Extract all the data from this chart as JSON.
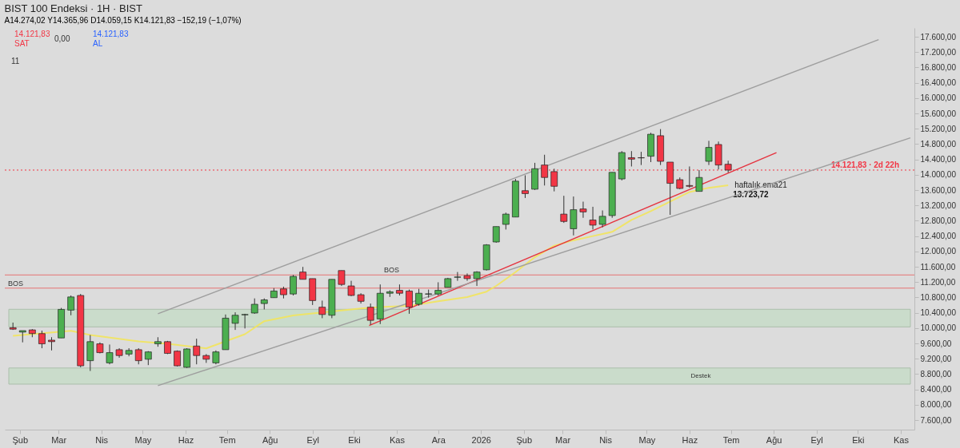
{
  "chart_data": {
    "type": "candlestick",
    "title": "BIST 100 Endeksi · 1H · BIST",
    "subtitle": "A14.274,02 Y14.365,96 D14.059,15 K14.121,83 −152,19 (−1,07%)",
    "x": [
      "2025-01-27",
      "2025-02-03",
      "2025-02-10",
      "2025-02-17",
      "2025-02-24",
      "2025-03-03",
      "2025-03-10",
      "2025-03-17",
      "2025-03-24",
      "2025-03-31",
      "2025-04-07",
      "2025-04-14",
      "2025-04-21",
      "2025-04-28",
      "2025-05-05",
      "2025-05-12",
      "2025-05-19",
      "2025-05-26",
      "2025-06-02",
      "2025-06-09",
      "2025-06-16",
      "2025-06-23",
      "2025-06-30",
      "2025-07-07",
      "2025-07-14",
      "2025-07-21",
      "2025-07-28",
      "2025-08-04",
      "2025-08-11",
      "2025-08-18",
      "2025-08-25",
      "2025-09-01",
      "2025-09-08",
      "2025-09-15",
      "2025-09-22",
      "2025-09-29",
      "2025-10-06",
      "2025-10-13",
      "2025-10-20",
      "2025-10-27",
      "2025-11-03",
      "2025-11-10",
      "2025-11-17",
      "2025-11-24",
      "2025-12-01",
      "2025-12-08",
      "2025-12-15",
      "2025-12-22",
      "2025-12-29",
      "2026-01-05",
      "2026-01-12",
      "2026-01-19",
      "2026-01-26",
      "2026-02-02",
      "2026-02-09",
      "2026-02-16",
      "2026-02-23",
      "2026-03-02",
      "2026-03-09",
      "2026-03-16",
      "2026-03-23",
      "2026-03-30",
      "2026-04-06",
      "2026-04-13",
      "2026-04-20",
      "2026-04-27",
      "2026-05-04",
      "2026-05-11",
      "2026-05-18",
      "2026-05-25",
      "2026-06-01",
      "2026-06-08",
      "2026-06-15",
      "2026-06-22",
      "2026-06-29"
    ],
    "ohlc": [
      [
        10009,
        10143,
        9952,
        9971
      ],
      [
        9895,
        9933,
        9627,
        9933
      ],
      [
        9952,
        9971,
        9761,
        9856
      ],
      [
        9856,
        9933,
        9474,
        9589
      ],
      [
        9684,
        9761,
        9417,
        9646
      ],
      [
        9742,
        10526,
        9742,
        10487
      ],
      [
        10468,
        10851,
        10334,
        10812
      ],
      [
        10851,
        10889,
        8977,
        9015
      ],
      [
        9149,
        9818,
        8881,
        9646
      ],
      [
        9589,
        9627,
        9340,
        9359
      ],
      [
        9092,
        9570,
        9054,
        9359
      ],
      [
        9436,
        9474,
        9226,
        9283
      ],
      [
        9321,
        9474,
        9264,
        9417
      ],
      [
        9436,
        9474,
        9054,
        9149
      ],
      [
        9187,
        9398,
        9034,
        9378
      ],
      [
        9589,
        9761,
        9513,
        9646
      ],
      [
        9646,
        9665,
        9321,
        9340
      ],
      [
        9398,
        9417,
        8996,
        9015
      ],
      [
        8977,
        9474,
        8958,
        9455
      ],
      [
        9531,
        9723,
        9054,
        9283
      ],
      [
        9283,
        9321,
        9092,
        9187
      ],
      [
        9092,
        9417,
        9054,
        9378
      ],
      [
        9436,
        10354,
        9436,
        10258
      ],
      [
        10124,
        10411,
        9952,
        10334
      ],
      [
        10345,
        10373,
        9990,
        10354
      ],
      [
        10392,
        10774,
        10373,
        10621
      ],
      [
        10640,
        10774,
        10487,
        10736
      ],
      [
        10793,
        11042,
        10793,
        10966
      ],
      [
        11023,
        11080,
        10774,
        10870
      ],
      [
        10889,
        11386,
        10851,
        11348
      ],
      [
        11462,
        11596,
        11271,
        11271
      ],
      [
        11290,
        11290,
        10602,
        10717
      ],
      [
        10545,
        10717,
        10258,
        10354
      ],
      [
        10334,
        11271,
        10258,
        11271
      ],
      [
        11501,
        11501,
        11099,
        11138
      ],
      [
        11099,
        11233,
        10832,
        10851
      ],
      [
        10870,
        10908,
        10640,
        10698
      ],
      [
        10545,
        10640,
        10086,
        10201
      ],
      [
        10239,
        11138,
        10105,
        10908
      ],
      [
        10908,
        10985,
        10812,
        10946
      ],
      [
        10985,
        11138,
        10851,
        10908
      ],
      [
        10966,
        11004,
        10373,
        10545
      ],
      [
        10621,
        11023,
        10583,
        10908
      ],
      [
        10885,
        11004,
        10793,
        10893
      ],
      [
        10889,
        11195,
        10851,
        10985
      ],
      [
        11061,
        11310,
        11061,
        11290
      ],
      [
        11325,
        11462,
        11233,
        11333
      ],
      [
        11367,
        11424,
        11233,
        11290
      ],
      [
        11290,
        11482,
        11099,
        11462
      ],
      [
        11520,
        12189,
        11501,
        12170
      ],
      [
        12246,
        12648,
        12227,
        12648
      ],
      [
        12705,
        13011,
        12571,
        12973
      ],
      [
        12897,
        13891,
        12897,
        13833
      ],
      [
        13585,
        13986,
        13394,
        13508
      ],
      [
        13623,
        14311,
        13604,
        14158
      ],
      [
        14254,
        14522,
        13719,
        13929
      ],
      [
        14082,
        14158,
        13566,
        13699
      ],
      [
        12973,
        13451,
        12744,
        12782
      ],
      [
        12591,
        13432,
        12418,
        13088
      ],
      [
        13107,
        13298,
        12877,
        13030
      ],
      [
        12820,
        13164,
        12571,
        12686
      ],
      [
        12705,
        13069,
        12629,
        12916
      ],
      [
        12935,
        14063,
        12877,
        14063
      ],
      [
        13891,
        14617,
        13853,
        14579
      ],
      [
        14445,
        14617,
        14216,
        14407
      ],
      [
        14445,
        14598,
        14254,
        14440
      ],
      [
        14483,
        15095,
        14330,
        15057
      ],
      [
        15019,
        15191,
        14254,
        14350
      ],
      [
        14330,
        14330,
        12954,
        13776
      ],
      [
        13872,
        13929,
        13623,
        13642
      ],
      [
        13719,
        14216,
        13661,
        13699
      ],
      [
        13566,
        14120,
        13566,
        13929
      ],
      [
        14350,
        14885,
        14254,
        14713
      ],
      [
        14789,
        14866,
        14139,
        14254
      ],
      [
        14274.02,
        14365.96,
        14059.15,
        14121.83
      ]
    ],
    "colors": [
      "#f23645",
      "#4caf50",
      "#f23645",
      "#f23645",
      "#f23645",
      "#4caf50",
      "#4caf50",
      "#f23645",
      "#4caf50",
      "#f23645",
      "#4caf50",
      "#f23645",
      "#4caf50",
      "#f23645",
      "#4caf50",
      "#4caf50",
      "#f23645",
      "#f23645",
      "#4caf50",
      "#f23645",
      "#f23645",
      "#4caf50",
      "#4caf50",
      "#4caf50",
      "#4caf50",
      "#4caf50",
      "#4caf50",
      "#4caf50",
      "#f23645",
      "#4caf50",
      "#f23645",
      "#f23645",
      "#f23645",
      "#4caf50",
      "#f23645",
      "#f23645",
      "#f23645",
      "#f23645",
      "#4caf50",
      "#4caf50",
      "#f23645",
      "#f23645",
      "#4caf50",
      "#4caf50",
      "#4caf50",
      "#4caf50",
      "#4caf50",
      "#f23645",
      "#4caf50",
      "#4caf50",
      "#4caf50",
      "#4caf50",
      "#4caf50",
      "#f23645",
      "#4caf50",
      "#f23645",
      "#f23645",
      "#f23645",
      "#4caf50",
      "#f23645",
      "#f23645",
      "#4caf50",
      "#4caf50",
      "#4caf50",
      "#f23645",
      "#f23645",
      "#4caf50",
      "#f23645",
      "#f23645",
      "#f23645",
      "#f23645",
      "#4caf50",
      "#4caf50",
      "#f23645",
      "#f23645"
    ],
    "series": [
      {
        "type": "line",
        "name": "haftalık ema21",
        "color": "#f2e45c",
        "x": [
          "2025-01-27",
          "2025-03-10",
          "2025-03-24",
          "2025-04-28",
          "2025-05-19",
          "2025-06-16",
          "2025-07-14",
          "2025-07-28",
          "2025-08-18",
          "2025-09-08",
          "2025-10-06",
          "2025-10-20",
          "2025-11-10",
          "2025-12-01",
          "2025-12-22",
          "2026-01-05",
          "2026-01-12",
          "2026-01-26",
          "2026-02-09",
          "2026-02-23",
          "2026-03-09",
          "2026-03-23",
          "2026-04-06",
          "2026-04-20",
          "2026-05-04",
          "2026-05-18",
          "2026-06-01",
          "2026-06-15",
          "2026-06-29"
        ],
        "values": [
          9800,
          9930,
          9820,
          9650,
          9590,
          9470,
          9840,
          10180,
          10330,
          10410,
          10510,
          10550,
          10580,
          10700,
          10810,
          10950,
          11100,
          11460,
          11850,
          12150,
          12290,
          12400,
          12510,
          12820,
          13050,
          13300,
          13550,
          13660,
          13723.72
        ],
        "value_labels": [
          null,
          null,
          null,
          null,
          null,
          null,
          null,
          null,
          null,
          null,
          null,
          null,
          null,
          null,
          null,
          null,
          null,
          null,
          null,
          null,
          null,
          null,
          null,
          null,
          null,
          null,
          null,
          null,
          "13.723,72"
        ]
      },
      {
        "type": "line",
        "color": "#e5333f",
        "x": [
          "2025-10-12",
          "2026-08-03"
        ],
        "values": [
          10067,
          14579
        ]
      },
      {
        "type": "line",
        "color": "#9e9e9e",
        "x": [
          "2025-05-12",
          "2026-10-16"
        ],
        "values": [
          10373,
          17524
        ]
      },
      {
        "type": "line",
        "color": "#9e9e9e",
        "x": [
          "2025-05-12",
          "2026-11-08"
        ],
        "values": [
          8499,
          14961
        ]
      }
    ],
    "bands": [
      {
        "axis": "y",
        "from": 10030,
        "to": 10490,
        "color": "#c5dcc6"
      },
      {
        "axis": "y",
        "from": 8537,
        "to": 8958,
        "label": "Destek",
        "color": "#c5dcc6"
      }
    ],
    "ref_lines": [
      {
        "axis": "y",
        "value": 11042,
        "label": "BOS",
        "color": "#e57373",
        "line_style": "solid"
      },
      {
        "axis": "y",
        "value": 11386,
        "label": "BOS",
        "color": "#e57373",
        "line_style": "solid"
      },
      {
        "axis": "y",
        "value": 14121.83,
        "label": "14.121,83 · 2d 22h",
        "color": "#f23645",
        "line_style": "dotted"
      }
    ],
    "annotations": [
      "14.121,83",
      "SAT",
      "0,00",
      "14.121,83",
      "AL",
      "11"
    ],
    "xlim": [
      "2025-01-24",
      "2026-11-08"
    ],
    "xticks": [
      {
        "value": "2025-02-01",
        "label": "Şub"
      },
      {
        "value": "2025-03-01",
        "label": "Mar"
      },
      {
        "value": "2025-04-01",
        "label": "Nis"
      },
      {
        "value": "2025-05-01",
        "label": "May"
      },
      {
        "value": "2025-06-01",
        "label": "Haz"
      },
      {
        "value": "2025-07-01",
        "label": "Tem"
      },
      {
        "value": "2025-08-01",
        "label": "Ağu"
      },
      {
        "value": "2025-09-01",
        "label": "Eyl"
      },
      {
        "value": "2025-10-01",
        "label": "Eki"
      },
      {
        "value": "2025-11-01",
        "label": "Kas"
      },
      {
        "value": "2025-12-01",
        "label": "Ara"
      },
      {
        "value": "2026-01-01",
        "label": "2026"
      },
      {
        "value": "2026-02-01",
        "label": "Şub"
      },
      {
        "value": "2026-03-01",
        "label": "Mar"
      },
      {
        "value": "2026-04-01",
        "label": "Nis"
      },
      {
        "value": "2026-05-01",
        "label": "May"
      },
      {
        "value": "2026-06-01",
        "label": "Haz"
      },
      {
        "value": "2026-07-01",
        "label": "Tem"
      },
      {
        "value": "2026-08-01",
        "label": "Ağu"
      },
      {
        "value": "2026-09-01",
        "label": "Eyl"
      },
      {
        "value": "2026-10-01",
        "label": "Eki"
      },
      {
        "value": "2026-11-01",
        "label": "Kas"
      }
    ],
    "ylim": [
      7350,
      17830
    ],
    "yticks": [
      {
        "value": 7600,
        "label": "7.600,00"
      },
      {
        "value": 8000,
        "label": "8.000,00"
      },
      {
        "value": 8400,
        "label": "8.400,00"
      },
      {
        "value": 8800,
        "label": "8.800,00"
      },
      {
        "value": 9200,
        "label": "9.200,00"
      },
      {
        "value": 9600,
        "label": "9.600,00"
      },
      {
        "value": 10000,
        "label": "10.000,00"
      },
      {
        "value": 10400,
        "label": "10.400,00"
      },
      {
        "value": 10800,
        "label": "10.800,00"
      },
      {
        "value": 11200,
        "label": "11.200,00"
      },
      {
        "value": 11600,
        "label": "11.600,00"
      },
      {
        "value": 12000,
        "label": "12.000,00"
      },
      {
        "value": 12400,
        "label": "12.400,00"
      },
      {
        "value": 12800,
        "label": "12.800,00"
      },
      {
        "value": 13200,
        "label": "13.200,00"
      },
      {
        "value": 13600,
        "label": "13.600,00"
      },
      {
        "value": 14000,
        "label": "14.000,00"
      },
      {
        "value": 14400,
        "label": "14.400,00"
      },
      {
        "value": 14800,
        "label": "14.800,00"
      },
      {
        "value": 15200,
        "label": "15.200,00"
      },
      {
        "value": 15600,
        "label": "15.600,00"
      },
      {
        "value": 16000,
        "label": "16.000,00"
      },
      {
        "value": 16400,
        "label": "16.400,00"
      },
      {
        "value": 16800,
        "label": "16.800,00"
      },
      {
        "value": 17200,
        "label": "17.200,00"
      },
      {
        "value": 17600,
        "label": "17.600,00"
      }
    ],
    "legend": false
  }
}
